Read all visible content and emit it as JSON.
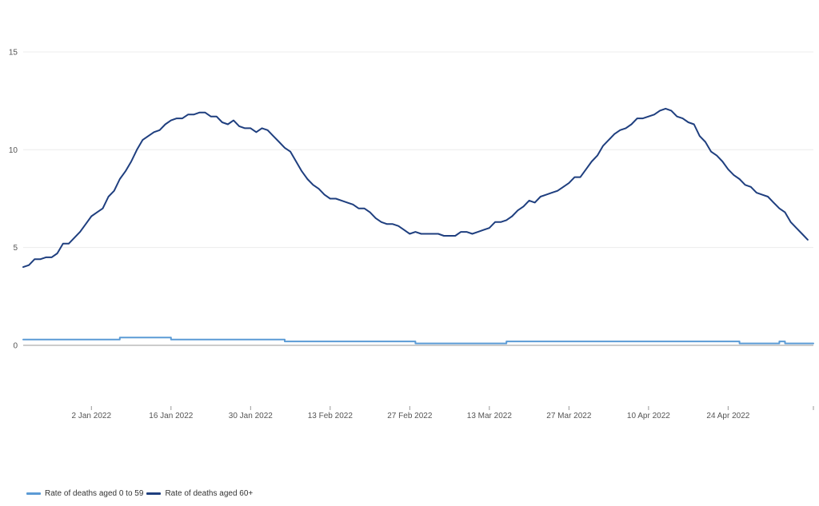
{
  "chart_data": {
    "type": "line",
    "title": "",
    "xlabel": "",
    "ylabel": "",
    "ylim": [
      -3,
      15
    ],
    "yticks": [
      0,
      5,
      10,
      15
    ],
    "x_start": "2021-12-21",
    "x_end": "2022-05-09",
    "x_ticks": [
      {
        "date": "2022-01-02",
        "label": "2 Jan 2022"
      },
      {
        "date": "2022-01-16",
        "label": "16 Jan 2022"
      },
      {
        "date": "2022-01-30",
        "label": "30 Jan 2022"
      },
      {
        "date": "2022-02-13",
        "label": "13 Feb 2022"
      },
      {
        "date": "2022-02-27",
        "label": "27 Feb 2022"
      },
      {
        "date": "2022-03-13",
        "label": "13 Mar 2022"
      },
      {
        "date": "2022-03-27",
        "label": "27 Mar 2022"
      },
      {
        "date": "2022-04-10",
        "label": "10 Apr 2022"
      },
      {
        "date": "2022-04-24",
        "label": "24 Apr 2022"
      }
    ],
    "grid": true,
    "legend_position": "bottom-left",
    "series": [
      {
        "name": "Rate of deaths aged 0 to 59",
        "color": "#5b9bd5",
        "points": [
          [
            "2021-12-21",
            0.3
          ],
          [
            "2022-01-06",
            0.3
          ],
          [
            "2022-01-07",
            0.4
          ],
          [
            "2022-01-15",
            0.4
          ],
          [
            "2022-01-16",
            0.3
          ],
          [
            "2022-02-04",
            0.3
          ],
          [
            "2022-02-05",
            0.2
          ],
          [
            "2022-02-27",
            0.2
          ],
          [
            "2022-02-28",
            0.1
          ],
          [
            "2022-03-15",
            0.1
          ],
          [
            "2022-03-16",
            0.2
          ],
          [
            "2022-04-25",
            0.2
          ],
          [
            "2022-04-26",
            0.1
          ],
          [
            "2022-05-02",
            0.1
          ],
          [
            "2022-05-03",
            0.2
          ],
          [
            "2022-05-04",
            0.1
          ],
          [
            "2022-05-09",
            0.1
          ]
        ]
      },
      {
        "name": "Rate of deaths aged 60+",
        "color": "#1f3f7f",
        "points": [
          [
            "2021-12-21",
            4.0
          ],
          [
            "2021-12-22",
            4.1
          ],
          [
            "2021-12-23",
            4.4
          ],
          [
            "2021-12-24",
            4.4
          ],
          [
            "2021-12-25",
            4.5
          ],
          [
            "2021-12-26",
            4.5
          ],
          [
            "2021-12-27",
            4.7
          ],
          [
            "2021-12-28",
            5.2
          ],
          [
            "2021-12-29",
            5.2
          ],
          [
            "2021-12-30",
            5.5
          ],
          [
            "2021-12-31",
            5.8
          ],
          [
            "2022-01-01",
            6.2
          ],
          [
            "2022-01-02",
            6.6
          ],
          [
            "2022-01-03",
            6.8
          ],
          [
            "2022-01-04",
            7.0
          ],
          [
            "2022-01-05",
            7.6
          ],
          [
            "2022-01-06",
            7.9
          ],
          [
            "2022-01-07",
            8.5
          ],
          [
            "2022-01-08",
            8.9
          ],
          [
            "2022-01-09",
            9.4
          ],
          [
            "2022-01-10",
            10.0
          ],
          [
            "2022-01-11",
            10.5
          ],
          [
            "2022-01-12",
            10.7
          ],
          [
            "2022-01-13",
            10.9
          ],
          [
            "2022-01-14",
            11.0
          ],
          [
            "2022-01-15",
            11.3
          ],
          [
            "2022-01-16",
            11.5
          ],
          [
            "2022-01-17",
            11.6
          ],
          [
            "2022-01-18",
            11.6
          ],
          [
            "2022-01-19",
            11.8
          ],
          [
            "2022-01-20",
            11.8
          ],
          [
            "2022-01-21",
            11.9
          ],
          [
            "2022-01-22",
            11.9
          ],
          [
            "2022-01-23",
            11.7
          ],
          [
            "2022-01-24",
            11.7
          ],
          [
            "2022-01-25",
            11.4
          ],
          [
            "2022-01-26",
            11.3
          ],
          [
            "2022-01-27",
            11.5
          ],
          [
            "2022-01-28",
            11.2
          ],
          [
            "2022-01-29",
            11.1
          ],
          [
            "2022-01-30",
            11.1
          ],
          [
            "2022-01-31",
            10.9
          ],
          [
            "2022-02-01",
            11.1
          ],
          [
            "2022-02-02",
            11.0
          ],
          [
            "2022-02-03",
            10.7
          ],
          [
            "2022-02-04",
            10.4
          ],
          [
            "2022-02-05",
            10.1
          ],
          [
            "2022-02-06",
            9.9
          ],
          [
            "2022-02-07",
            9.4
          ],
          [
            "2022-02-08",
            8.9
          ],
          [
            "2022-02-09",
            8.5
          ],
          [
            "2022-02-10",
            8.2
          ],
          [
            "2022-02-11",
            8.0
          ],
          [
            "2022-02-12",
            7.7
          ],
          [
            "2022-02-13",
            7.5
          ],
          [
            "2022-02-14",
            7.5
          ],
          [
            "2022-02-15",
            7.4
          ],
          [
            "2022-02-16",
            7.3
          ],
          [
            "2022-02-17",
            7.2
          ],
          [
            "2022-02-18",
            7.0
          ],
          [
            "2022-02-19",
            7.0
          ],
          [
            "2022-02-20",
            6.8
          ],
          [
            "2022-02-21",
            6.5
          ],
          [
            "2022-02-22",
            6.3
          ],
          [
            "2022-02-23",
            6.2
          ],
          [
            "2022-02-24",
            6.2
          ],
          [
            "2022-02-25",
            6.1
          ],
          [
            "2022-02-26",
            5.9
          ],
          [
            "2022-02-27",
            5.7
          ],
          [
            "2022-02-28",
            5.8
          ],
          [
            "2022-03-01",
            5.7
          ],
          [
            "2022-03-02",
            5.7
          ],
          [
            "2022-03-03",
            5.7
          ],
          [
            "2022-03-04",
            5.7
          ],
          [
            "2022-03-05",
            5.6
          ],
          [
            "2022-03-06",
            5.6
          ],
          [
            "2022-03-07",
            5.6
          ],
          [
            "2022-03-08",
            5.8
          ],
          [
            "2022-03-09",
            5.8
          ],
          [
            "2022-03-10",
            5.7
          ],
          [
            "2022-03-11",
            5.8
          ],
          [
            "2022-03-12",
            5.9
          ],
          [
            "2022-03-13",
            6.0
          ],
          [
            "2022-03-14",
            6.3
          ],
          [
            "2022-03-15",
            6.3
          ],
          [
            "2022-03-16",
            6.4
          ],
          [
            "2022-03-17",
            6.6
          ],
          [
            "2022-03-18",
            6.9
          ],
          [
            "2022-03-19",
            7.1
          ],
          [
            "2022-03-20",
            7.4
          ],
          [
            "2022-03-21",
            7.3
          ],
          [
            "2022-03-22",
            7.6
          ],
          [
            "2022-03-23",
            7.7
          ],
          [
            "2022-03-24",
            7.8
          ],
          [
            "2022-03-25",
            7.9
          ],
          [
            "2022-03-26",
            8.1
          ],
          [
            "2022-03-27",
            8.3
          ],
          [
            "2022-03-28",
            8.6
          ],
          [
            "2022-03-29",
            8.6
          ],
          [
            "2022-03-30",
            9.0
          ],
          [
            "2022-03-31",
            9.4
          ],
          [
            "2022-04-01",
            9.7
          ],
          [
            "2022-04-02",
            10.2
          ],
          [
            "2022-04-03",
            10.5
          ],
          [
            "2022-04-04",
            10.8
          ],
          [
            "2022-04-05",
            11.0
          ],
          [
            "2022-04-06",
            11.1
          ],
          [
            "2022-04-07",
            11.3
          ],
          [
            "2022-04-08",
            11.6
          ],
          [
            "2022-04-09",
            11.6
          ],
          [
            "2022-04-10",
            11.7
          ],
          [
            "2022-04-11",
            11.8
          ],
          [
            "2022-04-12",
            12.0
          ],
          [
            "2022-04-13",
            12.1
          ],
          [
            "2022-04-14",
            12.0
          ],
          [
            "2022-04-15",
            11.7
          ],
          [
            "2022-04-16",
            11.6
          ],
          [
            "2022-04-17",
            11.4
          ],
          [
            "2022-04-18",
            11.3
          ],
          [
            "2022-04-19",
            10.7
          ],
          [
            "2022-04-20",
            10.4
          ],
          [
            "2022-04-21",
            9.9
          ],
          [
            "2022-04-22",
            9.7
          ],
          [
            "2022-04-23",
            9.4
          ],
          [
            "2022-04-24",
            9.0
          ],
          [
            "2022-04-25",
            8.7
          ],
          [
            "2022-04-26",
            8.5
          ],
          [
            "2022-04-27",
            8.2
          ],
          [
            "2022-04-28",
            8.1
          ],
          [
            "2022-04-29",
            7.8
          ],
          [
            "2022-04-30",
            7.7
          ],
          [
            "2022-05-01",
            7.6
          ],
          [
            "2022-05-02",
            7.3
          ],
          [
            "2022-05-03",
            7.0
          ],
          [
            "2022-05-04",
            6.8
          ],
          [
            "2022-05-05",
            6.3
          ],
          [
            "2022-05-06",
            6.0
          ],
          [
            "2022-05-07",
            5.7
          ],
          [
            "2022-05-08",
            5.4
          ]
        ]
      }
    ]
  }
}
